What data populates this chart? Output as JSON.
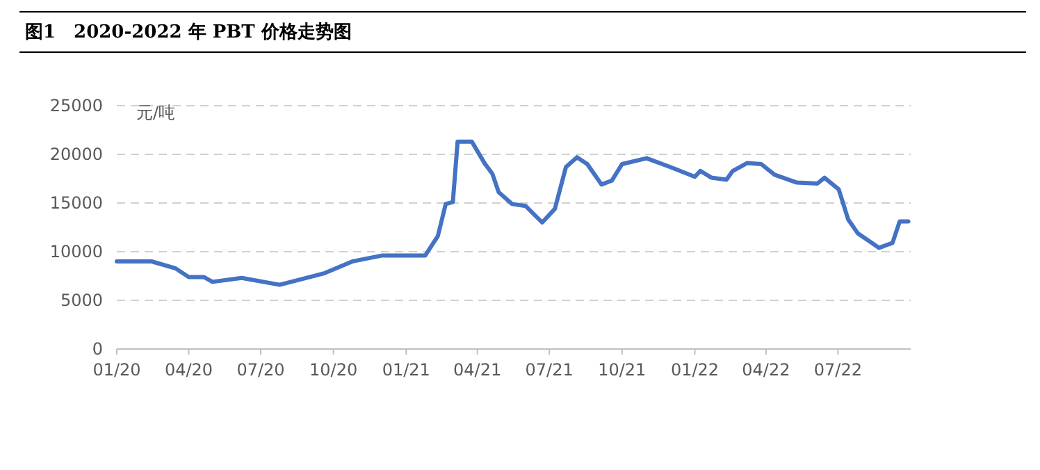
{
  "chart_data": {
    "type": "line",
    "title": "图1　2020-2022 年 PBT 价格走势图",
    "ylabel": "元/吨",
    "x": [
      "2020-01-01",
      "2020-02-14",
      "2020-03-15",
      "2020-04-01",
      "2020-04-20",
      "2020-05-01",
      "2020-06-07",
      "2020-07-25",
      "2020-09-20",
      "2020-10-25",
      "2020-12-01",
      "2021-01-25",
      "2021-02-10",
      "2021-02-20",
      "2021-03-01",
      "2021-03-07",
      "2021-03-25",
      "2021-04-10",
      "2021-04-20",
      "2021-04-28",
      "2021-05-15",
      "2021-06-01",
      "2021-06-22",
      "2021-07-08",
      "2021-07-22",
      "2021-08-05",
      "2021-08-18",
      "2021-09-05",
      "2021-09-18",
      "2021-10-01",
      "2021-11-01",
      "2021-12-01",
      "2022-01-01",
      "2022-01-08",
      "2022-01-22",
      "2022-02-10",
      "2022-02-18",
      "2022-03-08",
      "2022-03-26",
      "2022-04-12",
      "2022-05-10",
      "2022-06-05",
      "2022-06-14",
      "2022-07-02",
      "2022-07-14",
      "2022-07-26",
      "2022-08-22",
      "2022-09-08",
      "2022-09-17",
      "2022-09-28"
    ],
    "series": [
      {
        "color": "#4472c4",
        "values": [
          9000,
          9000,
          8300,
          7400,
          7400,
          6900,
          7300,
          6600,
          7800,
          9000,
          9600,
          9600,
          11600,
          14900,
          15100,
          21300,
          21300,
          19100,
          18000,
          16100,
          14900,
          14700,
          13000,
          14400,
          18700,
          19700,
          19000,
          16900,
          17300,
          19000,
          19600,
          18700,
          17700,
          18300,
          17600,
          17400,
          18300,
          19100,
          19000,
          17900,
          17100,
          17000,
          17600,
          16400,
          13300,
          11900,
          10400,
          10900,
          13100,
          13100
        ]
      }
    ],
    "xlim": [
      "2020-01-01",
      "2022-10-01"
    ],
    "xticks": [
      {
        "value": "2020-01-01",
        "label": "01/20"
      },
      {
        "value": "2020-04-01",
        "label": "04/20"
      },
      {
        "value": "2020-07-01",
        "label": "07/20"
      },
      {
        "value": "2020-10-01",
        "label": "10/20"
      },
      {
        "value": "2021-01-01",
        "label": "01/21"
      },
      {
        "value": "2021-04-01",
        "label": "04/21"
      },
      {
        "value": "2021-07-01",
        "label": "07/21"
      },
      {
        "value": "2021-10-01",
        "label": "10/21"
      },
      {
        "value": "2022-01-01",
        "label": "01/22"
      },
      {
        "value": "2022-04-01",
        "label": "04/22"
      },
      {
        "value": "2022-07-01",
        "label": "07/22"
      }
    ],
    "ylim": [
      0,
      25000
    ],
    "yticks": [
      0,
      5000,
      10000,
      15000,
      20000,
      25000
    ],
    "grid": "y",
    "marker": "none",
    "line_style": "solid"
  }
}
